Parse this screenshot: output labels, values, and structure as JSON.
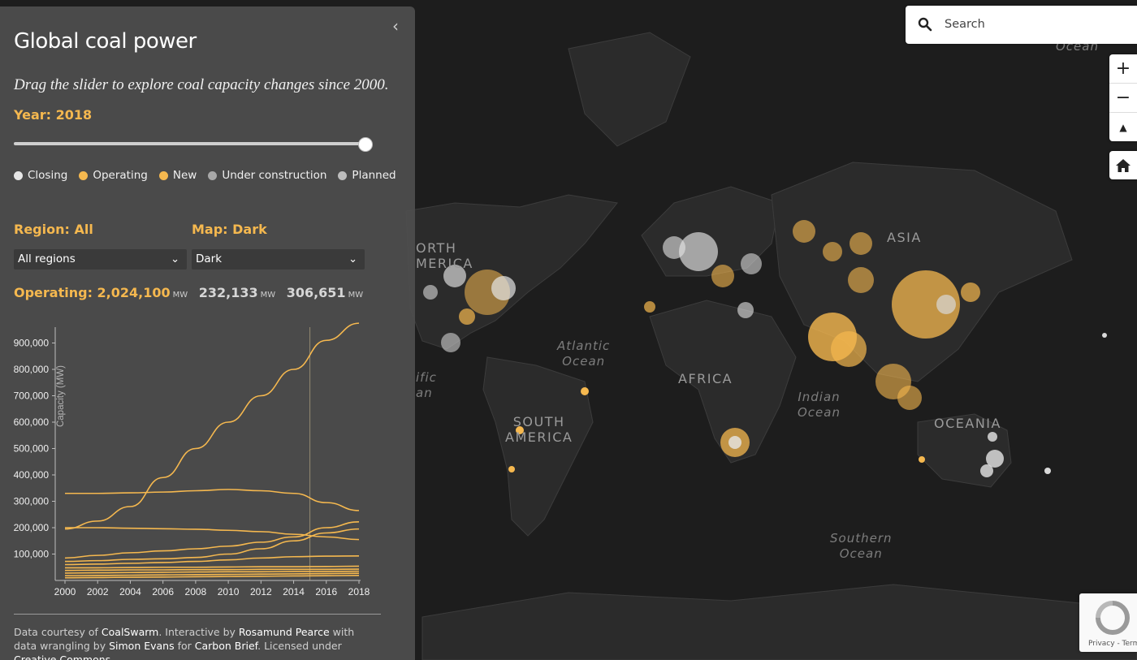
{
  "panel": {
    "title": "Global coal power",
    "subtitle": "Drag the slider to explore coal capacity changes since 2000.",
    "year_label": "Year: 2018",
    "slider_fraction": 1.0,
    "legend": [
      {
        "label": "Closing",
        "color": "#e6e6e6"
      },
      {
        "label": "Operating",
        "color": "#f5b84f"
      },
      {
        "label": "New",
        "color": "#f5b84f"
      },
      {
        "label": "Under construction",
        "color": "#a8a8a8"
      },
      {
        "label": "Planned",
        "color": "#bdbdbd"
      }
    ],
    "region_label": "Region: All",
    "map_label": "Map: Dark",
    "region_select": "All regions",
    "map_select": "Dark",
    "operating_label": "Operating: 2,024,100",
    "unit": "MW",
    "stat2": "232,133",
    "stat3": "306,651",
    "credits": {
      "part1": "Data courtesy of ",
      "link1": "CoalSwarm",
      "part2": ". Interactive by ",
      "link2": "Rosamund Pearce",
      "part3": " with data wrangling by ",
      "link3": "Simon Evans",
      "part4": " for ",
      "link4": "Carbon Brief",
      "part5": ". Licensed under ",
      "link5": "Creative Commons"
    }
  },
  "chart_data": {
    "type": "line",
    "ylabel": "Capacity (MW)",
    "x": [
      2000,
      2002,
      2004,
      2006,
      2008,
      2010,
      2012,
      2014,
      2016,
      2018
    ],
    "x_ticks": [
      "2000",
      "2002",
      "2004",
      "2006",
      "2008",
      "2010",
      "2012",
      "2014",
      "2016",
      "2018"
    ],
    "y_ticks": [
      "100,000",
      "200,000",
      "300,000",
      "400,000",
      "500,000",
      "600,000",
      "700,000",
      "800,000",
      "900,000"
    ],
    "ylim": [
      0,
      960000
    ],
    "marker_year": 2015,
    "color": "#f5b84f",
    "series": [
      {
        "values": [
          195000,
          225000,
          280000,
          390000,
          500000,
          600000,
          700000,
          800000,
          910000,
          975000
        ]
      },
      {
        "values": [
          330000,
          330000,
          332000,
          335000,
          340000,
          345000,
          340000,
          330000,
          295000,
          265000
        ]
      },
      {
        "values": [
          200000,
          200000,
          198000,
          196000,
          194000,
          190000,
          185000,
          175000,
          165000,
          155000
        ]
      },
      {
        "values": [
          85000,
          95000,
          105000,
          112000,
          120000,
          130000,
          145000,
          165000,
          200000,
          222000
        ]
      },
      {
        "values": [
          72000,
          75000,
          80000,
          82000,
          87000,
          100000,
          120000,
          150000,
          180000,
          195000
        ]
      },
      {
        "values": [
          60000,
          62000,
          65000,
          68000,
          72000,
          78000,
          85000,
          90000,
          92000,
          93000
        ]
      },
      {
        "values": [
          48000,
          48000,
          49000,
          50000,
          50000,
          51000,
          52000,
          52000,
          53000,
          54000
        ]
      },
      {
        "values": [
          38000,
          39000,
          40000,
          40000,
          41000,
          41000,
          42000,
          42000,
          42000,
          43000
        ]
      },
      {
        "values": [
          28000,
          29000,
          30000,
          31000,
          32000,
          33000,
          33000,
          34000,
          34000,
          35000
        ]
      },
      {
        "values": [
          18000,
          19000,
          20000,
          21000,
          22000,
          23000,
          24000,
          25000,
          26000,
          27000
        ]
      },
      {
        "values": [
          10000,
          11000,
          12000,
          13000,
          14000,
          15000,
          16000,
          17000,
          18000,
          19000
        ]
      }
    ]
  },
  "map": {
    "continents": [
      {
        "name": "ORTH\nMERICA"
      },
      {
        "name": "AFRICA"
      },
      {
        "name": "SOUTH\nAMERICA"
      },
      {
        "name": "ASIA"
      },
      {
        "name": "OCEANIA"
      }
    ],
    "oceans": [
      {
        "name": "Atlantic\nOcean"
      },
      {
        "name": "Indian\nOcean"
      },
      {
        "name": "Southern\nOcean"
      },
      {
        "name": "ific\nan"
      },
      {
        "name": "Ocean"
      }
    ]
  },
  "controls": {
    "search_placeholder": "Search",
    "zoom_in": "+",
    "zoom_out": "−",
    "compass": "▲",
    "home": "home",
    "captcha_text": "Privacy - Terms"
  }
}
